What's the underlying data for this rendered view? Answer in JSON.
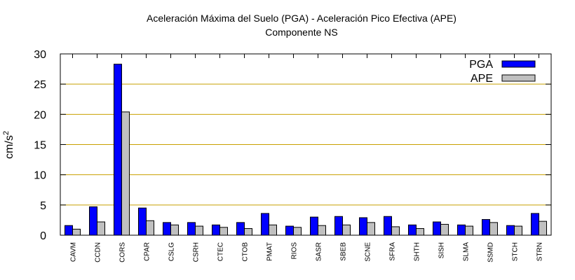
{
  "chart_data": {
    "type": "bar",
    "title": "Aceleración Máxima del Suelo (PGA) -  Aceleración Pico Efectiva (APE)",
    "subtitle": "Componente NS",
    "ylabel": "cm/s",
    "ylabel_sup": "2",
    "xlabel": "",
    "ylim": [
      0,
      30
    ],
    "yticks": [
      0,
      5,
      10,
      15,
      20,
      25,
      30
    ],
    "grid": true,
    "legend_position": "top-right",
    "categories": [
      "CAVM",
      "CCDN",
      "CORS",
      "CPAR",
      "CSLG",
      "CSRH",
      "CTEC",
      "CTOB",
      "PMAT",
      "RIOS",
      "SASR",
      "SBEB",
      "SCNE",
      "SFRA",
      "SHTH",
      "SISH",
      "SLMA",
      "SSMD",
      "STCH",
      "STRN"
    ],
    "series": [
      {
        "name": "PGA",
        "color": "#0000ff",
        "values": [
          1.6,
          4.7,
          28.3,
          4.5,
          2.1,
          2.1,
          1.7,
          2.1,
          3.6,
          1.5,
          3.0,
          3.1,
          2.9,
          3.1,
          1.7,
          2.2,
          1.7,
          2.6,
          1.6,
          3.6
        ]
      },
      {
        "name": "APE",
        "color": "#c0c0c0",
        "values": [
          1.0,
          2.2,
          20.4,
          2.4,
          1.7,
          1.5,
          1.3,
          1.1,
          1.7,
          1.3,
          1.6,
          1.7,
          2.1,
          1.4,
          1.1,
          1.8,
          1.5,
          2.1,
          1.5,
          2.3
        ]
      }
    ],
    "colors": {
      "grid": "#c8a000",
      "axis": "#000000"
    }
  }
}
